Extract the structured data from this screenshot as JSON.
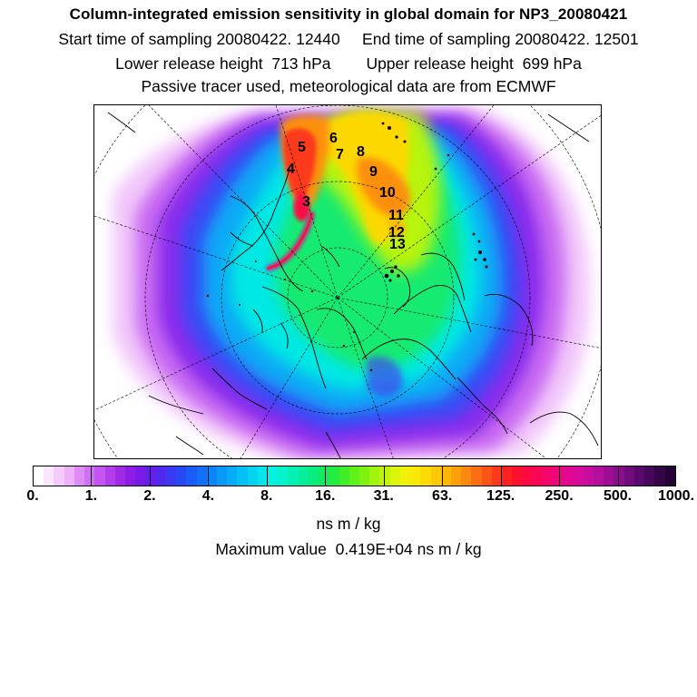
{
  "header": {
    "title": "Column-integrated emission sensitivity in global domain for NP3_20080421",
    "line2": "Start time of sampling 20080422. 12440     End time of sampling 20080422. 12501",
    "line3": "Lower release height  713 hPa        Upper release height  699 hPa",
    "line4": "Passive tracer used, meteorological data are from ECMWF"
  },
  "map": {
    "projection": "polar stereographic (north)",
    "trajectory_markers": [
      "3",
      "4",
      "5",
      "6",
      "7",
      "8",
      "9",
      "10",
      "11",
      "12",
      "13"
    ]
  },
  "colorbar": {
    "tick_labels": [
      "0.",
      "1.",
      "2.",
      "4.",
      "8.",
      "16.",
      "31.",
      "63.",
      "125.",
      "250.",
      "500.",
      "1000."
    ],
    "colors": [
      "#ffffff",
      "#fae6fd",
      "#f4ccfb",
      "#edb0f9",
      "#e08cf6",
      "#d270f3",
      "#c455f0",
      "#b43deb",
      "#a02ae6",
      "#8c1ce6",
      "#781ae8",
      "#6420ea",
      "#4f2aee",
      "#3b38f2",
      "#2848f5",
      "#1a5cf7",
      "#1270f8",
      "#0c84f8",
      "#0898f8",
      "#06acf7",
      "#04c0f5",
      "#04d4f2",
      "#05e6ec",
      "#06f2e0",
      "#06f4cc",
      "#05f0b4",
      "#05ee9c",
      "#08ec80",
      "#12ea60",
      "#24ec40",
      "#40ee28",
      "#60f01a",
      "#80f212",
      "#a0f40e",
      "#c0f40c",
      "#dcf40a",
      "#f0f008",
      "#fae806",
      "#fcda04",
      "#fcca04",
      "#fcb606",
      "#fca00a",
      "#fc880e",
      "#fc6e12",
      "#fc5416",
      "#fc3a1a",
      "#fc2220",
      "#fc1030",
      "#fc0844",
      "#fa0658",
      "#f4066c",
      "#ec0680",
      "#e40890",
      "#d80a9c",
      "#c80ca0",
      "#b40e9c",
      "#9e0e94",
      "#880e8a",
      "#700c7c",
      "#5a0a6c",
      "#46085c",
      "#340648",
      "#240434"
    ]
  },
  "units": "ns m / kg",
  "maximum": "Maximum value  0.419E+04 ns m / kg"
}
